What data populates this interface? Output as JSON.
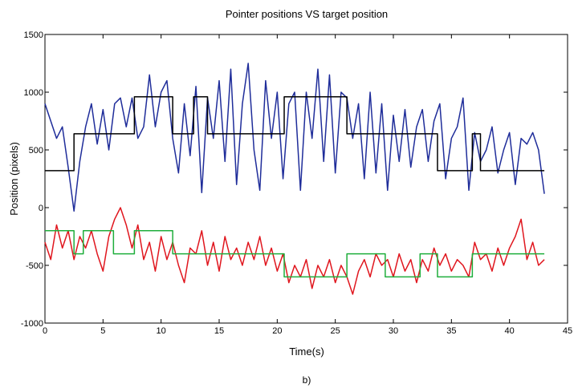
{
  "chart_data": {
    "type": "line",
    "title": "Pointer positions VS target position",
    "xlabel": "Time(s)",
    "ylabel": "Position (pixels)",
    "caption": "b)",
    "xlim": [
      0,
      45
    ],
    "xticks": [
      0,
      5,
      10,
      15,
      20,
      25,
      30,
      35,
      40,
      45
    ],
    "ylim": [
      -1000,
      1500
    ],
    "yticks": [
      -1000,
      -500,
      0,
      500,
      1000,
      1500
    ],
    "grid": false,
    "series": [
      {
        "color": "#1f2d9a",
        "x": [
          0,
          0.5,
          1,
          1.5,
          2,
          2.5,
          3,
          3.5,
          4,
          4.5,
          5,
          5.5,
          6,
          6.5,
          7,
          7.5,
          8,
          8.5,
          9,
          9.5,
          10,
          10.5,
          11,
          11.5,
          12,
          12.5,
          13,
          13.5,
          14,
          14.5,
          15,
          15.5,
          16,
          16.5,
          17,
          17.5,
          18,
          18.5,
          19,
          19.5,
          20,
          20.5,
          21,
          21.5,
          22,
          22.5,
          23,
          23.5,
          24,
          24.5,
          25,
          25.5,
          26,
          26.5,
          27,
          27.5,
          28,
          28.5,
          29,
          29.5,
          30,
          30.5,
          31,
          31.5,
          32,
          32.5,
          33,
          33.5,
          34,
          34.5,
          35,
          35.5,
          36,
          36.5,
          37,
          37.5,
          38,
          38.5,
          39,
          39.5,
          40,
          40.5,
          41,
          41.5,
          42,
          42.5,
          43
        ],
        "values": [
          900,
          750,
          600,
          700,
          350,
          -30,
          400,
          700,
          900,
          550,
          850,
          500,
          900,
          950,
          700,
          950,
          600,
          700,
          1150,
          700,
          1000,
          1100,
          600,
          300,
          900,
          450,
          1050,
          130,
          950,
          600,
          1100,
          400,
          1200,
          200,
          900,
          1250,
          500,
          150,
          1100,
          600,
          1000,
          250,
          900,
          1000,
          150,
          1000,
          600,
          1200,
          400,
          1150,
          300,
          1000,
          950,
          600,
          900,
          250,
          1000,
          300,
          900,
          150,
          800,
          400,
          850,
          350,
          700,
          850,
          400,
          750,
          900,
          250,
          600,
          700,
          950,
          150,
          650,
          400,
          500,
          700,
          300,
          500,
          650,
          200,
          600,
          550,
          650,
          500,
          120
        ]
      },
      {
        "color": "#000000",
        "x": [
          0,
          2.5,
          2.5,
          7.7,
          7.7,
          11,
          11,
          12.8,
          12.8,
          14,
          14,
          20.6,
          20.6,
          26,
          26,
          33.8,
          33.8,
          36.8,
          36.8,
          37.5,
          37.5,
          43
        ],
        "values": [
          320,
          320,
          640,
          640,
          960,
          960,
          640,
          640,
          960,
          960,
          640,
          640,
          960,
          960,
          640,
          640,
          320,
          320,
          640,
          640,
          320,
          320
        ]
      },
      {
        "color": "#e0161e",
        "x": [
          0,
          0.5,
          1,
          1.5,
          2,
          2.5,
          3,
          3.5,
          4,
          4.5,
          5,
          5.5,
          6,
          6.5,
          7,
          7.5,
          8,
          8.5,
          9,
          9.5,
          10,
          10.5,
          11,
          11.5,
          12,
          12.5,
          13,
          13.5,
          14,
          14.5,
          15,
          15.5,
          16,
          16.5,
          17,
          17.5,
          18,
          18.5,
          19,
          19.5,
          20,
          20.5,
          21,
          21.5,
          22,
          22.5,
          23,
          23.5,
          24,
          24.5,
          25,
          25.5,
          26,
          26.5,
          27,
          27.5,
          28,
          28.5,
          29,
          29.5,
          30,
          30.5,
          31,
          31.5,
          32,
          32.5,
          33,
          33.5,
          34,
          34.5,
          35,
          35.5,
          36,
          36.5,
          37,
          37.5,
          38,
          38.5,
          39,
          39.5,
          40,
          40.5,
          41,
          41.5,
          42,
          42.5,
          43
        ],
        "values": [
          -300,
          -450,
          -150,
          -350,
          -200,
          -450,
          -250,
          -350,
          -200,
          -400,
          -550,
          -250,
          -100,
          0,
          -150,
          -350,
          -150,
          -450,
          -300,
          -550,
          -250,
          -450,
          -300,
          -500,
          -650,
          -350,
          -400,
          -200,
          -500,
          -300,
          -550,
          -250,
          -450,
          -350,
          -500,
          -300,
          -450,
          -250,
          -500,
          -350,
          -550,
          -400,
          -650,
          -500,
          -600,
          -450,
          -700,
          -500,
          -600,
          -450,
          -650,
          -500,
          -600,
          -750,
          -550,
          -450,
          -600,
          -400,
          -500,
          -450,
          -600,
          -400,
          -550,
          -450,
          -650,
          -450,
          -550,
          -350,
          -500,
          -400,
          -550,
          -450,
          -500,
          -600,
          -300,
          -450,
          -400,
          -550,
          -350,
          -500,
          -350,
          -250,
          -100,
          -450,
          -300,
          -500,
          -450
        ]
      },
      {
        "color": "#1fae3c",
        "x": [
          0,
          2.5,
          2.5,
          3.3,
          3.3,
          5.9,
          5.9,
          7.7,
          7.7,
          11,
          11,
          20.6,
          20.6,
          26,
          26,
          29.3,
          29.3,
          32.3,
          32.3,
          33.8,
          33.8,
          36.8,
          36.8,
          43
        ],
        "values": [
          -200,
          -200,
          -400,
          -400,
          -200,
          -200,
          -400,
          -400,
          -200,
          -200,
          -400,
          -400,
          -600,
          -600,
          -400,
          -400,
          -600,
          -600,
          -400,
          -400,
          -600,
          -600,
          -400,
          -400
        ]
      }
    ]
  }
}
